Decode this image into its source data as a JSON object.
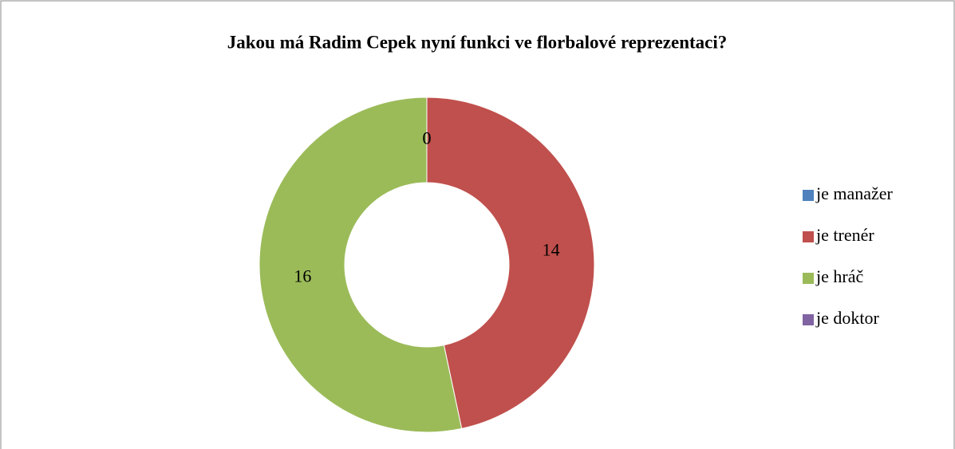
{
  "chart_data": {
    "type": "donut",
    "title": "Jakou má Radim Cepek nyní funkci ve florbalové reprezentaci?",
    "categories": [
      "je manažer",
      "je trenér",
      "je hráč",
      "je doktor"
    ],
    "values": [
      0,
      14,
      16,
      0
    ],
    "colors": [
      "#4f81bd",
      "#c0504d",
      "#9bbb59",
      "#8064a2"
    ],
    "legend": "right"
  }
}
